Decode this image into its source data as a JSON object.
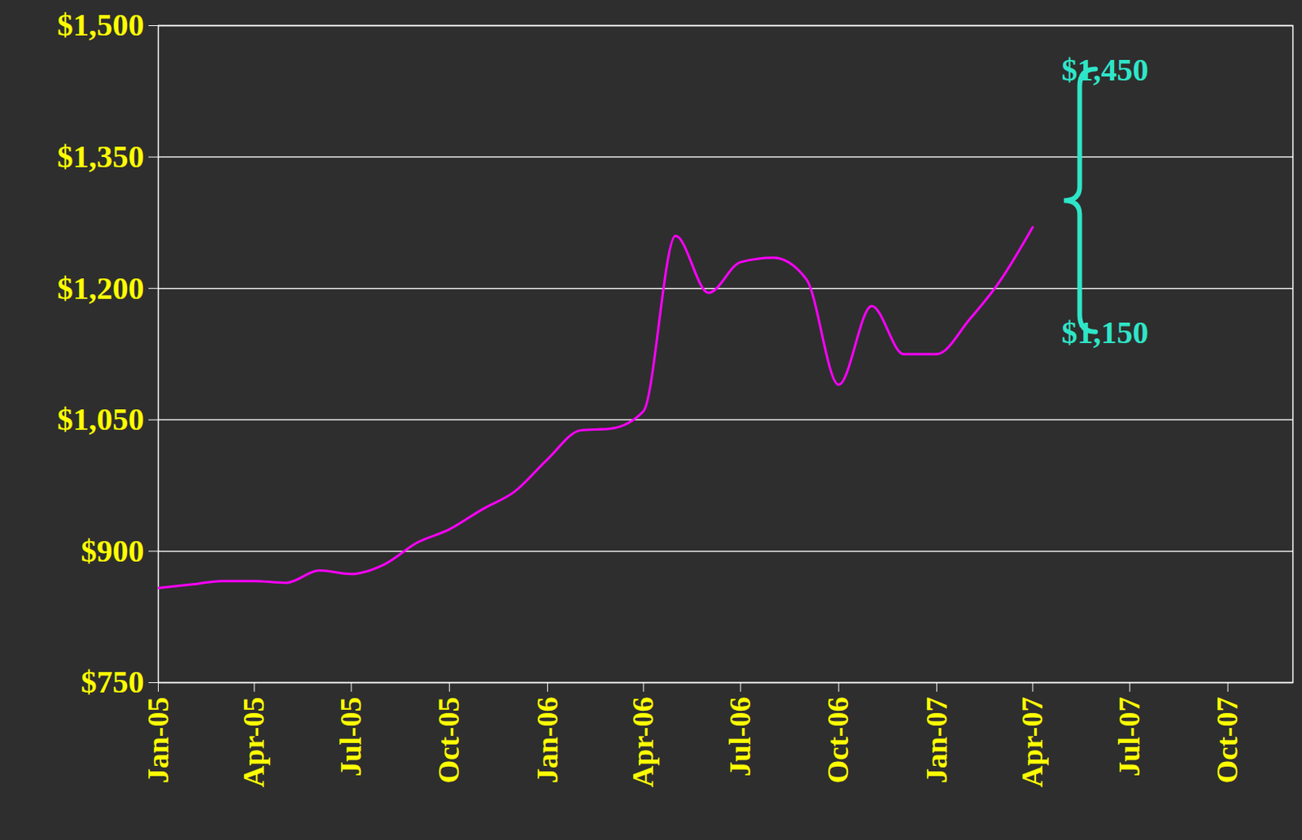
{
  "chart_data": {
    "type": "line",
    "x": [
      "2005-01",
      "2005-02",
      "2005-03",
      "2005-04",
      "2005-05",
      "2005-06",
      "2005-07",
      "2005-08",
      "2005-09",
      "2005-10",
      "2005-11",
      "2005-12",
      "2006-01",
      "2006-02",
      "2006-03",
      "2006-04",
      "2006-05",
      "2006-06",
      "2006-07",
      "2006-08",
      "2006-09",
      "2006-10",
      "2006-11",
      "2006-12",
      "2007-01",
      "2007-02",
      "2007-03",
      "2007-04"
    ],
    "values": [
      858,
      862,
      866,
      866,
      864,
      878,
      874,
      885,
      910,
      925,
      948,
      968,
      1005,
      1038,
      1040,
      1060,
      1260,
      1195,
      1230,
      1235,
      1210,
      1090,
      1180,
      1125,
      1125,
      1165,
      1208,
      1270
    ],
    "color": "#ff00ff",
    "xlim": [
      "2005-01",
      "2007-12"
    ],
    "xticks": [
      {
        "value": "2005-01",
        "label": "Jan-05"
      },
      {
        "value": "2005-04",
        "label": "Apr-05"
      },
      {
        "value": "2005-07",
        "label": "Jul-05"
      },
      {
        "value": "2005-10",
        "label": "Oct-05"
      },
      {
        "value": "2006-01",
        "label": "Jan-06"
      },
      {
        "value": "2006-04",
        "label": "Apr-06"
      },
      {
        "value": "2006-07",
        "label": "Jul-06"
      },
      {
        "value": "2006-10",
        "label": "Oct-06"
      },
      {
        "value": "2007-01",
        "label": "Jan-07"
      },
      {
        "value": "2007-04",
        "label": "Apr-07"
      },
      {
        "value": "2007-07",
        "label": "Jul-07"
      },
      {
        "value": "2007-10",
        "label": "Oct-07"
      }
    ],
    "ylim": [
      750,
      1500
    ],
    "yticks": [
      {
        "value": 750,
        "label": "$750"
      },
      {
        "value": 900,
        "label": "$900"
      },
      {
        "value": 1050,
        "label": "$1,050"
      },
      {
        "value": 1200,
        "label": "$1,200"
      },
      {
        "value": 1350,
        "label": "$1,350"
      },
      {
        "value": 1500,
        "label": "$1,500"
      }
    ],
    "grid": true,
    "annotations": [
      {
        "text": "$1,450",
        "value": 1450
      },
      {
        "text": "$1,150",
        "value": 1150
      }
    ]
  }
}
